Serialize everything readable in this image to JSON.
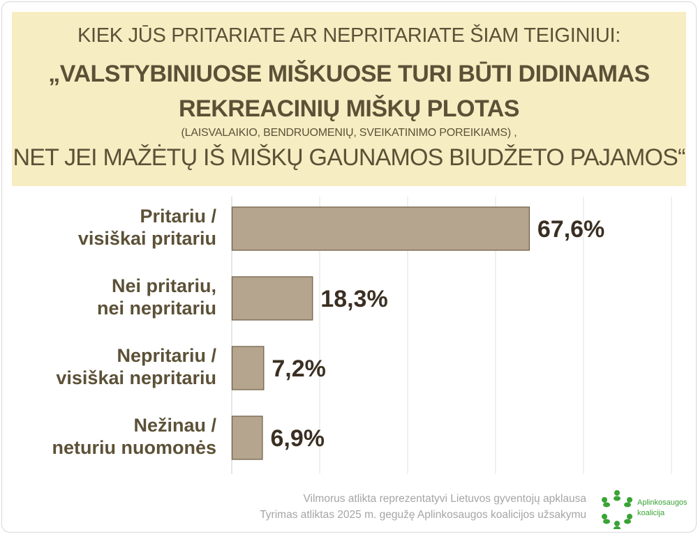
{
  "header": {
    "line1": "KIEK JŪS PRITARIATE AR NEPRITARIATE ŠIAM TEIGINIUI:",
    "line2": "„VALSTYBINIUOSE MIŠKUOSE TURI BŪTI DIDINAMAS",
    "line3": "REKREACINIŲ MIŠKŲ PLOTAS",
    "line4": "(LAISVALAIKIO, BENDRUOMENIŲ, SVEIKATINIMO POREIKIAMS) ,",
    "line5": "NET JEI MAŽĖTŲ IŠ MIŠKŲ GAUNAMOS BIUDŽETO PAJAMOS“"
  },
  "chart_data": {
    "type": "bar",
    "orientation": "horizontal",
    "categories": [
      [
        "Pritariu /",
        "visiškai pritariu"
      ],
      [
        "Nei pritariu,",
        "nei nepritariu"
      ],
      [
        "Nepritariu /",
        "visiškai nepritariu"
      ],
      [
        "Nežinau /",
        "neturiu nuomonės"
      ]
    ],
    "values": [
      67.6,
      18.3,
      7.2,
      6.9
    ],
    "value_labels": [
      "67,6%",
      "18,3%",
      "7,2%",
      "6,9%"
    ],
    "xlim": [
      0,
      100
    ],
    "grid": true,
    "bar_color": "#b5a58e",
    "bar_edge_color": "#6e5c43"
  },
  "footer": {
    "line1": "Vilmorus atlikta reprezentatyvi Lietuvos gyventojų apklausa",
    "line2": "Tyrimas atliktas 2025 m. gegužę  Aplinkosaugos koalicijos užsakymu"
  },
  "logo": {
    "line1": "Aplinkosaugos",
    "line2": "koalicija",
    "icon": "people-circle-icon",
    "color": "#3aa335"
  }
}
